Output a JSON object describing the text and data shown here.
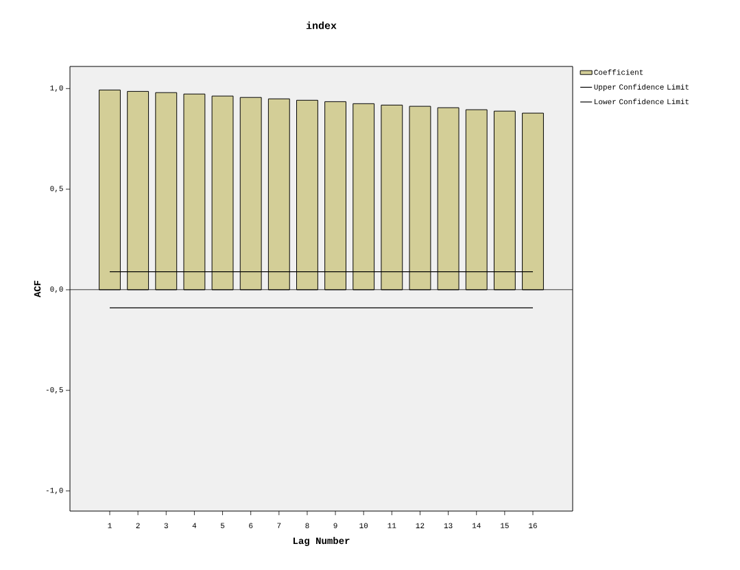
{
  "chart_data": {
    "type": "bar",
    "title": "index",
    "xlabel": "Lag Number",
    "ylabel": "ACF",
    "categories": [
      "1",
      "2",
      "3",
      "4",
      "5",
      "6",
      "7",
      "8",
      "9",
      "10",
      "11",
      "12",
      "13",
      "14",
      "15",
      "16"
    ],
    "series": [
      {
        "name": "Coefficient",
        "color": "#d3ce97",
        "values": [
          0.993,
          0.986,
          0.98,
          0.973,
          0.963,
          0.956,
          0.949,
          0.942,
          0.935,
          0.925,
          0.918,
          0.912,
          0.905,
          0.895,
          0.888,
          0.878
        ]
      },
      {
        "name": "Upper Confidence Limit",
        "type": "line",
        "color": "#000000",
        "values": [
          0.09,
          0.09,
          0.09,
          0.09,
          0.09,
          0.09,
          0.09,
          0.09,
          0.09,
          0.09,
          0.09,
          0.09,
          0.09,
          0.09,
          0.09,
          0.09
        ]
      },
      {
        "name": "Lower Confidence Limit",
        "type": "line",
        "color": "#000000",
        "values": [
          -0.09,
          -0.09,
          -0.09,
          -0.09,
          -0.09,
          -0.09,
          -0.09,
          -0.09,
          -0.09,
          -0.09,
          -0.09,
          -0.09,
          -0.09,
          -0.09,
          -0.09,
          -0.09
        ]
      }
    ],
    "ylim": [
      -1.1,
      1.11
    ],
    "yticks": [
      {
        "value": -1,
        "label": "-1,0"
      },
      {
        "value": -0.5,
        "label": "-0,5"
      },
      {
        "value": 0,
        "label": "0,0"
      },
      {
        "value": 0.5,
        "label": "0,5"
      },
      {
        "value": 1,
        "label": "1,0"
      }
    ],
    "legend": "top right",
    "grid": false
  }
}
